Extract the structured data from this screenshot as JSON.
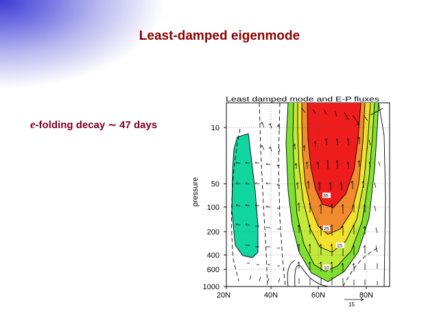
{
  "slide": {
    "title": "Least-damped eigenmode",
    "decay_italic": "e",
    "decay_rest": "-folding decay",
    "tilde": "∼",
    "decay_value": "47 days"
  },
  "plot": {
    "title": "Least damped mode and E-P fluxes",
    "ylabel": "pressure",
    "y_ticks": [
      "10",
      "50",
      "100",
      "200",
      "400",
      "600",
      "1000"
    ],
    "x_ticks": [
      "20N",
      "40N",
      "60N",
      "80N"
    ],
    "arrow_scale_label": "15",
    "contour_labels": [
      "35",
      "25",
      "15",
      "10"
    ],
    "colors": {
      "red": "#ee1c1c",
      "orange_red": "#ee5a1e",
      "orange": "#f28a2e",
      "yellow": "#f2e22e",
      "yellow_green": "#c2ea3a",
      "green": "#7ee030",
      "teal": "#12d6a0",
      "title_color": "#8b0000",
      "decay_color": "#800020"
    }
  }
}
